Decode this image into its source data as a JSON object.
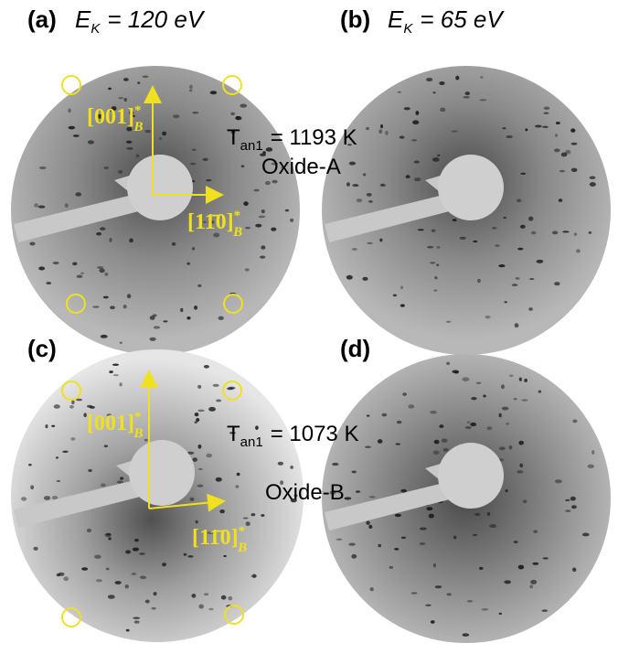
{
  "panels": [
    {
      "label": "(a)",
      "energy_symbol": "E",
      "energy_subscript": "K",
      "energy_value": "= 120 eV"
    },
    {
      "label": "(b)",
      "energy_symbol": "E",
      "energy_subscript": "K",
      "energy_value": "= 65 eV"
    },
    {
      "label": "(c)"
    },
    {
      "label": "(d)"
    }
  ],
  "annotations": [
    {
      "temperature_symbol": "T",
      "temperature_subscript": "an1",
      "temperature_value": "= 1193 K",
      "oxide": "Oxide-A",
      "direction_vertical": "[001]",
      "direction_horizontal": "[11̄0]",
      "direction_superscript": "*",
      "direction_subscript": "B"
    },
    {
      "temperature_symbol": "T",
      "temperature_subscript": "an1",
      "temperature_value": "= 1073 K",
      "oxide": "Oxide-B",
      "direction_vertical": "[001]",
      "direction_horizontal": "[11̄0]",
      "direction_superscript": "*",
      "direction_subscript": "B"
    }
  ]
}
